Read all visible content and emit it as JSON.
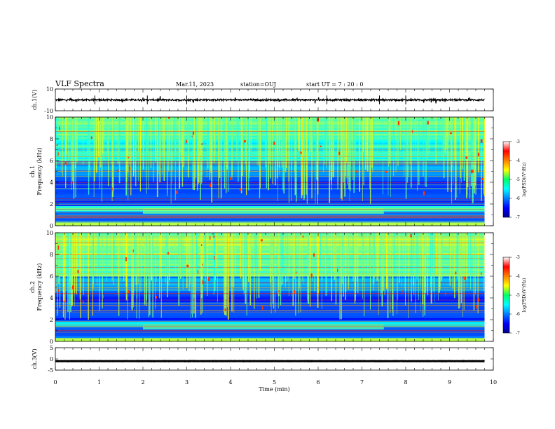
{
  "header": {
    "title": "VLF Spectra",
    "date": "Mar.11, 2023",
    "station": "station=OUJ",
    "start": "start  UT =   7 : 20 : 0"
  },
  "chart_data": [
    {
      "type": "line",
      "id": "ch1-waveform",
      "ylabel": "ch.1(V)",
      "ylim": [
        -10,
        10
      ],
      "yticks": [
        "10",
        "-10"
      ],
      "series": [
        {
          "values_description_note": ""
        }
      ],
      "level": 0,
      "noise": 0.8
    },
    {
      "type": "heatmap",
      "id": "ch1-spectrogram",
      "ylabel_top": "ch.1",
      "ylabel": "Frequency  (kHz)",
      "ylim": [
        0,
        10
      ],
      "yticks": [
        "0",
        "2",
        "4",
        "6",
        "8",
        "10"
      ],
      "xlim": [
        0,
        10
      ],
      "data_end_min": 9.8
    },
    {
      "type": "heatmap",
      "id": "ch2-spectrogram",
      "ylabel_top": "ch.2",
      "ylabel": "Frequency  (kHz)",
      "ylim": [
        0,
        10
      ],
      "yticks": [
        "0",
        "2",
        "4",
        "6",
        "8",
        "10"
      ],
      "xlim": [
        0,
        10
      ],
      "data_end_min": 9.8
    },
    {
      "type": "line",
      "id": "ch3-waveform",
      "ylabel": "ch.3(V)",
      "ylim": [
        -5,
        5
      ],
      "yticks": [
        "5",
        "0",
        "-5"
      ],
      "level": -1,
      "noise": 0.05
    }
  ],
  "x_axis": {
    "label": "Time  (min)",
    "range": [
      0,
      10
    ],
    "ticks": [
      "0",
      "1",
      "2",
      "3",
      "4",
      "5",
      "6",
      "7",
      "8",
      "9",
      "10"
    ]
  },
  "colorbar": {
    "label": "log(PSD)(V²/Hz)",
    "range": [
      -7,
      -3
    ],
    "ticks": [
      "-3",
      "-4",
      "-5",
      "-6",
      "-7"
    ]
  }
}
